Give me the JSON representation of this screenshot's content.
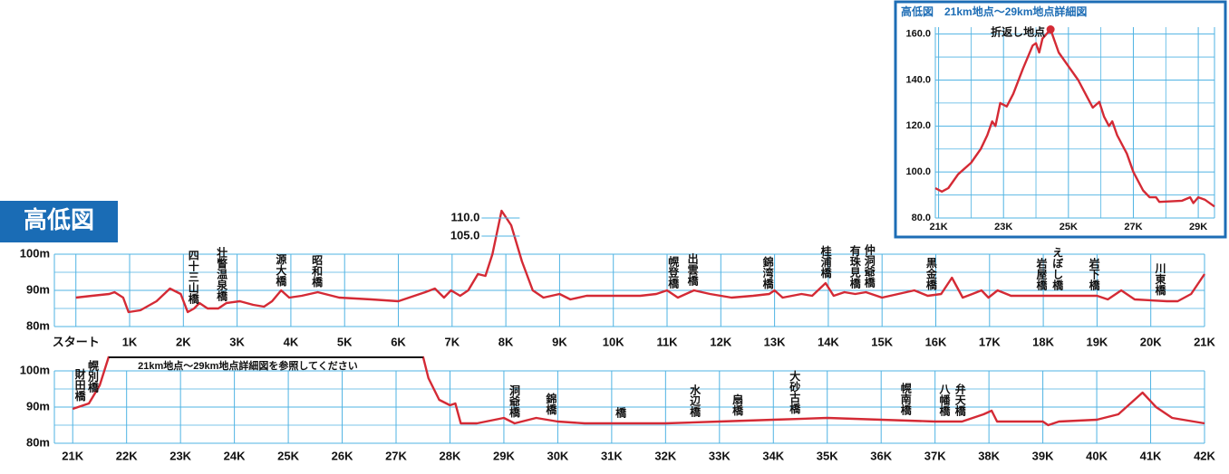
{
  "header": {
    "title": "高低図"
  },
  "chart_data": [
    {
      "type": "line",
      "color": "#d42a35",
      "grid": true,
      "xlim": [
        -0.4,
        21
      ],
      "ylim": [
        80,
        100
      ],
      "yticks": [
        {
          "value": 80,
          "label": "80m"
        },
        {
          "value": 90,
          "label": "90m"
        },
        {
          "value": 100,
          "label": "100m"
        }
      ],
      "minor_yticks": [
        85,
        95
      ],
      "xticks": [
        {
          "value": 0,
          "label": "スタート"
        },
        {
          "value": 1,
          "label": "1K"
        },
        {
          "value": 2,
          "label": "2K"
        },
        {
          "value": 3,
          "label": "3K"
        },
        {
          "value": 4,
          "label": "4K"
        },
        {
          "value": 5,
          "label": "5K"
        },
        {
          "value": 6,
          "label": "6K"
        },
        {
          "value": 7,
          "label": "7K"
        },
        {
          "value": 8,
          "label": "8K"
        },
        {
          "value": 9,
          "label": "9K"
        },
        {
          "value": 10,
          "label": "10K"
        },
        {
          "value": 11,
          "label": "11K"
        },
        {
          "value": 12,
          "label": "12K"
        },
        {
          "value": 13,
          "label": "13K"
        },
        {
          "value": 14,
          "label": "14K"
        },
        {
          "value": 15,
          "label": "15K"
        },
        {
          "value": 16,
          "label": "16K"
        },
        {
          "value": 17,
          "label": "17K"
        },
        {
          "value": 18,
          "label": "18K"
        },
        {
          "value": 19,
          "label": "19K"
        },
        {
          "value": 20,
          "label": "20K"
        },
        {
          "value": 21,
          "label": "21K"
        }
      ],
      "peak_ticks": [
        {
          "value": 105,
          "label": "105.0"
        },
        {
          "value": 110,
          "label": "110.0"
        }
      ],
      "x": [
        0,
        0.3,
        0.62,
        0.72,
        0.88,
        0.98,
        1.2,
        1.5,
        1.75,
        1.95,
        2.08,
        2.2,
        2.3,
        2.45,
        2.65,
        2.8,
        3.05,
        3.3,
        3.5,
        3.65,
        3.82,
        3.97,
        4.2,
        4.5,
        4.9,
        5.5,
        6.0,
        6.3,
        6.5,
        6.68,
        6.85,
        6.98,
        7.15,
        7.3,
        7.48,
        7.62,
        7.75,
        7.92,
        8.1,
        8.3,
        8.5,
        8.7,
        9.0,
        9.2,
        9.5,
        10.0,
        10.5,
        10.8,
        11.0,
        11.2,
        11.5,
        11.8,
        12.2,
        12.6,
        12.9,
        13.0,
        13.15,
        13.5,
        13.7,
        13.95,
        14.1,
        14.3,
        14.5,
        14.7,
        15.0,
        15.3,
        15.6,
        15.85,
        16.1,
        16.3,
        16.5,
        16.68,
        16.85,
        16.98,
        17.15,
        17.4,
        17.8,
        18.5,
        19.0,
        19.2,
        19.45,
        19.7,
        20.3,
        20.5,
        20.75,
        21.0
      ],
      "values": [
        88,
        88.5,
        89,
        89.5,
        88,
        84,
        84.5,
        87,
        90.5,
        89,
        84,
        85,
        86.5,
        85,
        85,
        86.5,
        87,
        86,
        85.5,
        87,
        90,
        88,
        88.5,
        89.5,
        88,
        87.5,
        87,
        88.5,
        89.5,
        90.5,
        88,
        90,
        88.5,
        90,
        94.5,
        94,
        100,
        112,
        108,
        98,
        90,
        88,
        89,
        87.5,
        88.5,
        88.5,
        88.5,
        89,
        90,
        88,
        90,
        89,
        88,
        88.5,
        89,
        90,
        88,
        89,
        88.5,
        92,
        88.5,
        89.5,
        89,
        89.5,
        88,
        89,
        90,
        88.5,
        89,
        93.5,
        88,
        89,
        90,
        88,
        90,
        88.5,
        88.5,
        88.5,
        88.5,
        87.5,
        90,
        87.5,
        87,
        87,
        89,
        94.5
      ],
      "annotations": [
        {
          "text": "四十三山橋",
          "x": 2.17
        },
        {
          "text": "壮瞥温泉橋",
          "x": 2.7
        },
        {
          "text": "源大橋",
          "x": 3.8
        },
        {
          "text": "昭和橋",
          "x": 4.47
        },
        {
          "text": "幌登橋",
          "x": 11.1
        },
        {
          "text": "出雲橋",
          "x": 11.46
        },
        {
          "text": "錦湾橋",
          "x": 12.86
        },
        {
          "text": "桂浦橋",
          "x": 13.94
        },
        {
          "text": "有珠見橋",
          "x": 14.48
        },
        {
          "text": "仲洞爺橋",
          "x": 14.75
        },
        {
          "text": "黒金橋",
          "x": 15.9
        },
        {
          "text": "岩屋橋",
          "x": 17.95
        },
        {
          "text": "えぼし橋",
          "x": 18.25
        },
        {
          "text": "岩下橋",
          "x": 18.93
        },
        {
          "text": "川東橋",
          "x": 20.16
        }
      ]
    },
    {
      "type": "line",
      "color": "#d42a35",
      "grid": true,
      "xlim": [
        20.66,
        42
      ],
      "ylim": [
        80,
        100
      ],
      "yticks": [
        {
          "value": 80,
          "label": "80m"
        },
        {
          "value": 90,
          "label": "90m"
        },
        {
          "value": 100,
          "label": "100m"
        }
      ],
      "minor_yticks": [
        85,
        95
      ],
      "xticks": [
        {
          "value": 21,
          "label": "21K"
        },
        {
          "value": 22,
          "label": "22K"
        },
        {
          "value": 23,
          "label": "23K"
        },
        {
          "value": 24,
          "label": "24K"
        },
        {
          "value": 25,
          "label": "25K"
        },
        {
          "value": 26,
          "label": "26K"
        },
        {
          "value": 27,
          "label": "27K"
        },
        {
          "value": 28,
          "label": "28K"
        },
        {
          "value": 29,
          "label": "29K"
        },
        {
          "value": 30,
          "label": "30K"
        },
        {
          "value": 31,
          "label": "31K"
        },
        {
          "value": 32,
          "label": "32K"
        },
        {
          "value": 33,
          "label": "33K"
        },
        {
          "value": 34,
          "label": "34K"
        },
        {
          "value": 35,
          "label": "35K"
        },
        {
          "value": 36,
          "label": "36K"
        },
        {
          "value": 37,
          "label": "37K"
        },
        {
          "value": 38,
          "label": "38K"
        },
        {
          "value": 39,
          "label": "39K"
        },
        {
          "value": 40,
          "label": "40K"
        },
        {
          "value": 41,
          "label": "41K"
        },
        {
          "value": 42,
          "label": "42K"
        }
      ],
      "note": {
        "text": "21km地点〜29km地点詳細図を参照してください",
        "from": 21.67,
        "to": 27.5
      },
      "x": [
        21.0,
        21.3,
        21.5,
        21.67,
        24.6,
        27.5,
        27.6,
        27.8,
        28.0,
        28.1,
        28.2,
        28.5,
        29.0,
        29.2,
        29.6,
        30.0,
        30.5,
        31.0,
        32.0,
        33.0,
        34.0,
        35.0,
        36.0,
        37.0,
        37.5,
        37.9,
        38.05,
        38.15,
        38.5,
        39.0,
        39.1,
        39.3,
        40.0,
        40.4,
        40.7,
        40.85,
        41.1,
        41.4,
        42.0
      ],
      "values": [
        89.5,
        91,
        96,
        104,
        null,
        104,
        98,
        92,
        90.5,
        91,
        85.5,
        85.5,
        87,
        85.5,
        87,
        86,
        85.5,
        85.5,
        85.5,
        86,
        86.5,
        87,
        86.5,
        86,
        86,
        88,
        89,
        86,
        86,
        86,
        85,
        86,
        86.5,
        88,
        92,
        94,
        90,
        87,
        85.5
      ],
      "annotations": [
        {
          "text": "財田橋",
          "x": 21.12
        },
        {
          "text": "幌別橋",
          "x": 21.36
        },
        {
          "text": "洞爺橋",
          "x": 29.18
        },
        {
          "text": "錦橋",
          "x": 29.86
        },
        {
          "text": "橋",
          "x": 31.15
        },
        {
          "text": "水辺橋",
          "x": 32.53
        },
        {
          "text": "扇橋",
          "x": 33.32
        },
        {
          "text": "大砂古橋",
          "x": 34.38
        },
        {
          "text": "幌南橋",
          "x": 36.44
        },
        {
          "text": "八幡橋",
          "x": 37.16
        },
        {
          "text": "弁天橋",
          "x": 37.45
        }
      ]
    },
    {
      "type": "line",
      "color": "#d42a35",
      "grid": true,
      "title": "高低図　21km地点〜29km地点詳細図",
      "xlim": [
        20.9,
        29.5
      ],
      "ylim": [
        80,
        163
      ],
      "yticks": [
        {
          "value": 80,
          "label": "80.0"
        },
        {
          "value": 100,
          "label": "100.0"
        },
        {
          "value": 120,
          "label": "120.0"
        },
        {
          "value": 140,
          "label": "140.0"
        },
        {
          "value": 160,
          "label": "160.0"
        }
      ],
      "minor_yticks": [
        90,
        110,
        130,
        150
      ],
      "xticks": [
        {
          "value": 21,
          "label": "21K"
        },
        {
          "value": 23,
          "label": "23K"
        },
        {
          "value": 25,
          "label": "25K"
        },
        {
          "value": 27,
          "label": "27K"
        },
        {
          "value": 29,
          "label": "29K"
        }
      ],
      "minor_xticks": [
        22,
        24,
        26,
        28
      ],
      "marker": {
        "label": "折返し地点",
        "x": 24.45,
        "value": 162
      },
      "x": [
        20.9,
        21.1,
        21.3,
        21.6,
        22.0,
        22.3,
        22.5,
        22.65,
        22.75,
        22.9,
        23.1,
        23.3,
        23.6,
        23.9,
        24.0,
        24.1,
        24.2,
        24.45,
        24.7,
        25.0,
        25.3,
        25.6,
        25.75,
        25.95,
        26.1,
        26.25,
        26.35,
        26.5,
        26.8,
        27.0,
        27.3,
        27.5,
        27.7,
        27.8,
        28.5,
        28.75,
        28.85,
        29.0,
        29.2,
        29.5
      ],
      "values": [
        93,
        91.5,
        93,
        99,
        104,
        110,
        116,
        122,
        120,
        130,
        128.5,
        134,
        145,
        155,
        156,
        152,
        158,
        162,
        152,
        146,
        140,
        132,
        128,
        130.5,
        124,
        120,
        122,
        116,
        108,
        100,
        92,
        89,
        89,
        87,
        87.5,
        89,
        86.5,
        89,
        88,
        85
      ]
    }
  ]
}
